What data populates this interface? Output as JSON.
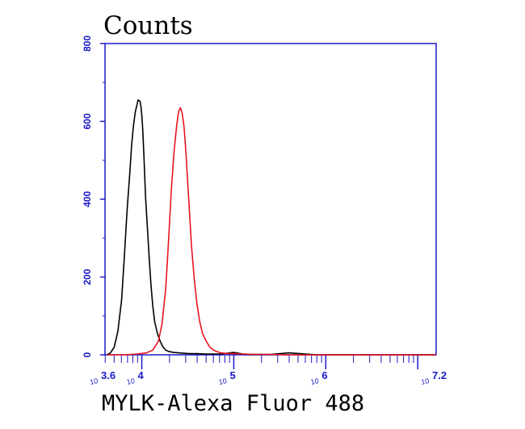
{
  "chart_data": {
    "type": "line",
    "ylabel": "Counts",
    "xlabel": "MYLK-Alexa Fluor 488",
    "x_scale": "log10",
    "xlim_exp": [
      3.6,
      7.2
    ],
    "ylim": [
      0,
      800
    ],
    "yticks": [
      {
        "value": 0,
        "label": "0"
      },
      {
        "value": 200,
        "label": "200"
      },
      {
        "value": 400,
        "label": "400"
      },
      {
        "value": 600,
        "label": "600"
      },
      {
        "value": 800,
        "label": "800"
      }
    ],
    "xticks": [
      {
        "exp": 3.6,
        "base": "10",
        "sup": "3.6"
      },
      {
        "exp": 4,
        "base": "10",
        "sup": "4"
      },
      {
        "exp": 5,
        "base": "10",
        "sup": "5"
      },
      {
        "exp": 6,
        "base": "10",
        "sup": "6"
      },
      {
        "exp": 7.2,
        "base": "10",
        "sup": "7.2"
      }
    ],
    "grid": false,
    "legend": "none",
    "axis_color": "#1a1ac8",
    "series": [
      {
        "color": "#000000",
        "x_exp": [
          3.62,
          3.66,
          3.7,
          3.74,
          3.78,
          3.81,
          3.84,
          3.87,
          3.89,
          3.91,
          3.93,
          3.95,
          3.96,
          3.98,
          3.99,
          4.0,
          4.01,
          4.02,
          4.03,
          4.04,
          4.06,
          4.08,
          4.1,
          4.12,
          4.14,
          4.17,
          4.2,
          4.23,
          4.26,
          4.3,
          4.35,
          4.4,
          4.46,
          4.52,
          4.6,
          4.7,
          4.85,
          5.0,
          5.1,
          5.2,
          5.4,
          5.6,
          5.9,
          7.2
        ],
        "y": [
          0,
          5,
          20,
          60,
          140,
          250,
          370,
          470,
          540,
          590,
          625,
          645,
          655,
          652,
          640,
          615,
          580,
          530,
          470,
          410,
          330,
          250,
          180,
          125,
          85,
          55,
          35,
          20,
          12,
          8,
          6,
          5,
          4,
          3,
          3,
          2,
          2,
          6,
          2,
          1,
          1,
          5,
          0,
          0
        ]
      },
      {
        "color": "#e8141e",
        "x_exp": [
          3.62,
          3.8,
          3.95,
          4.05,
          4.12,
          4.18,
          4.22,
          4.26,
          4.29,
          4.32,
          4.35,
          4.38,
          4.4,
          4.42,
          4.44,
          4.46,
          4.48,
          4.5,
          4.52,
          4.54,
          4.57,
          4.6,
          4.63,
          4.66,
          4.7,
          4.74,
          4.78,
          4.82,
          4.86,
          4.9,
          4.95,
          5.0,
          5.1,
          5.25,
          5.4,
          5.6,
          5.9,
          6.2,
          7.2
        ],
        "y": [
          0,
          0,
          2,
          5,
          12,
          35,
          80,
          170,
          290,
          420,
          520,
          590,
          625,
          635,
          620,
          585,
          520,
          440,
          360,
          280,
          195,
          130,
          85,
          55,
          35,
          20,
          12,
          8,
          5,
          4,
          3,
          3,
          2,
          1,
          1,
          0,
          0,
          0,
          0
        ]
      }
    ]
  }
}
